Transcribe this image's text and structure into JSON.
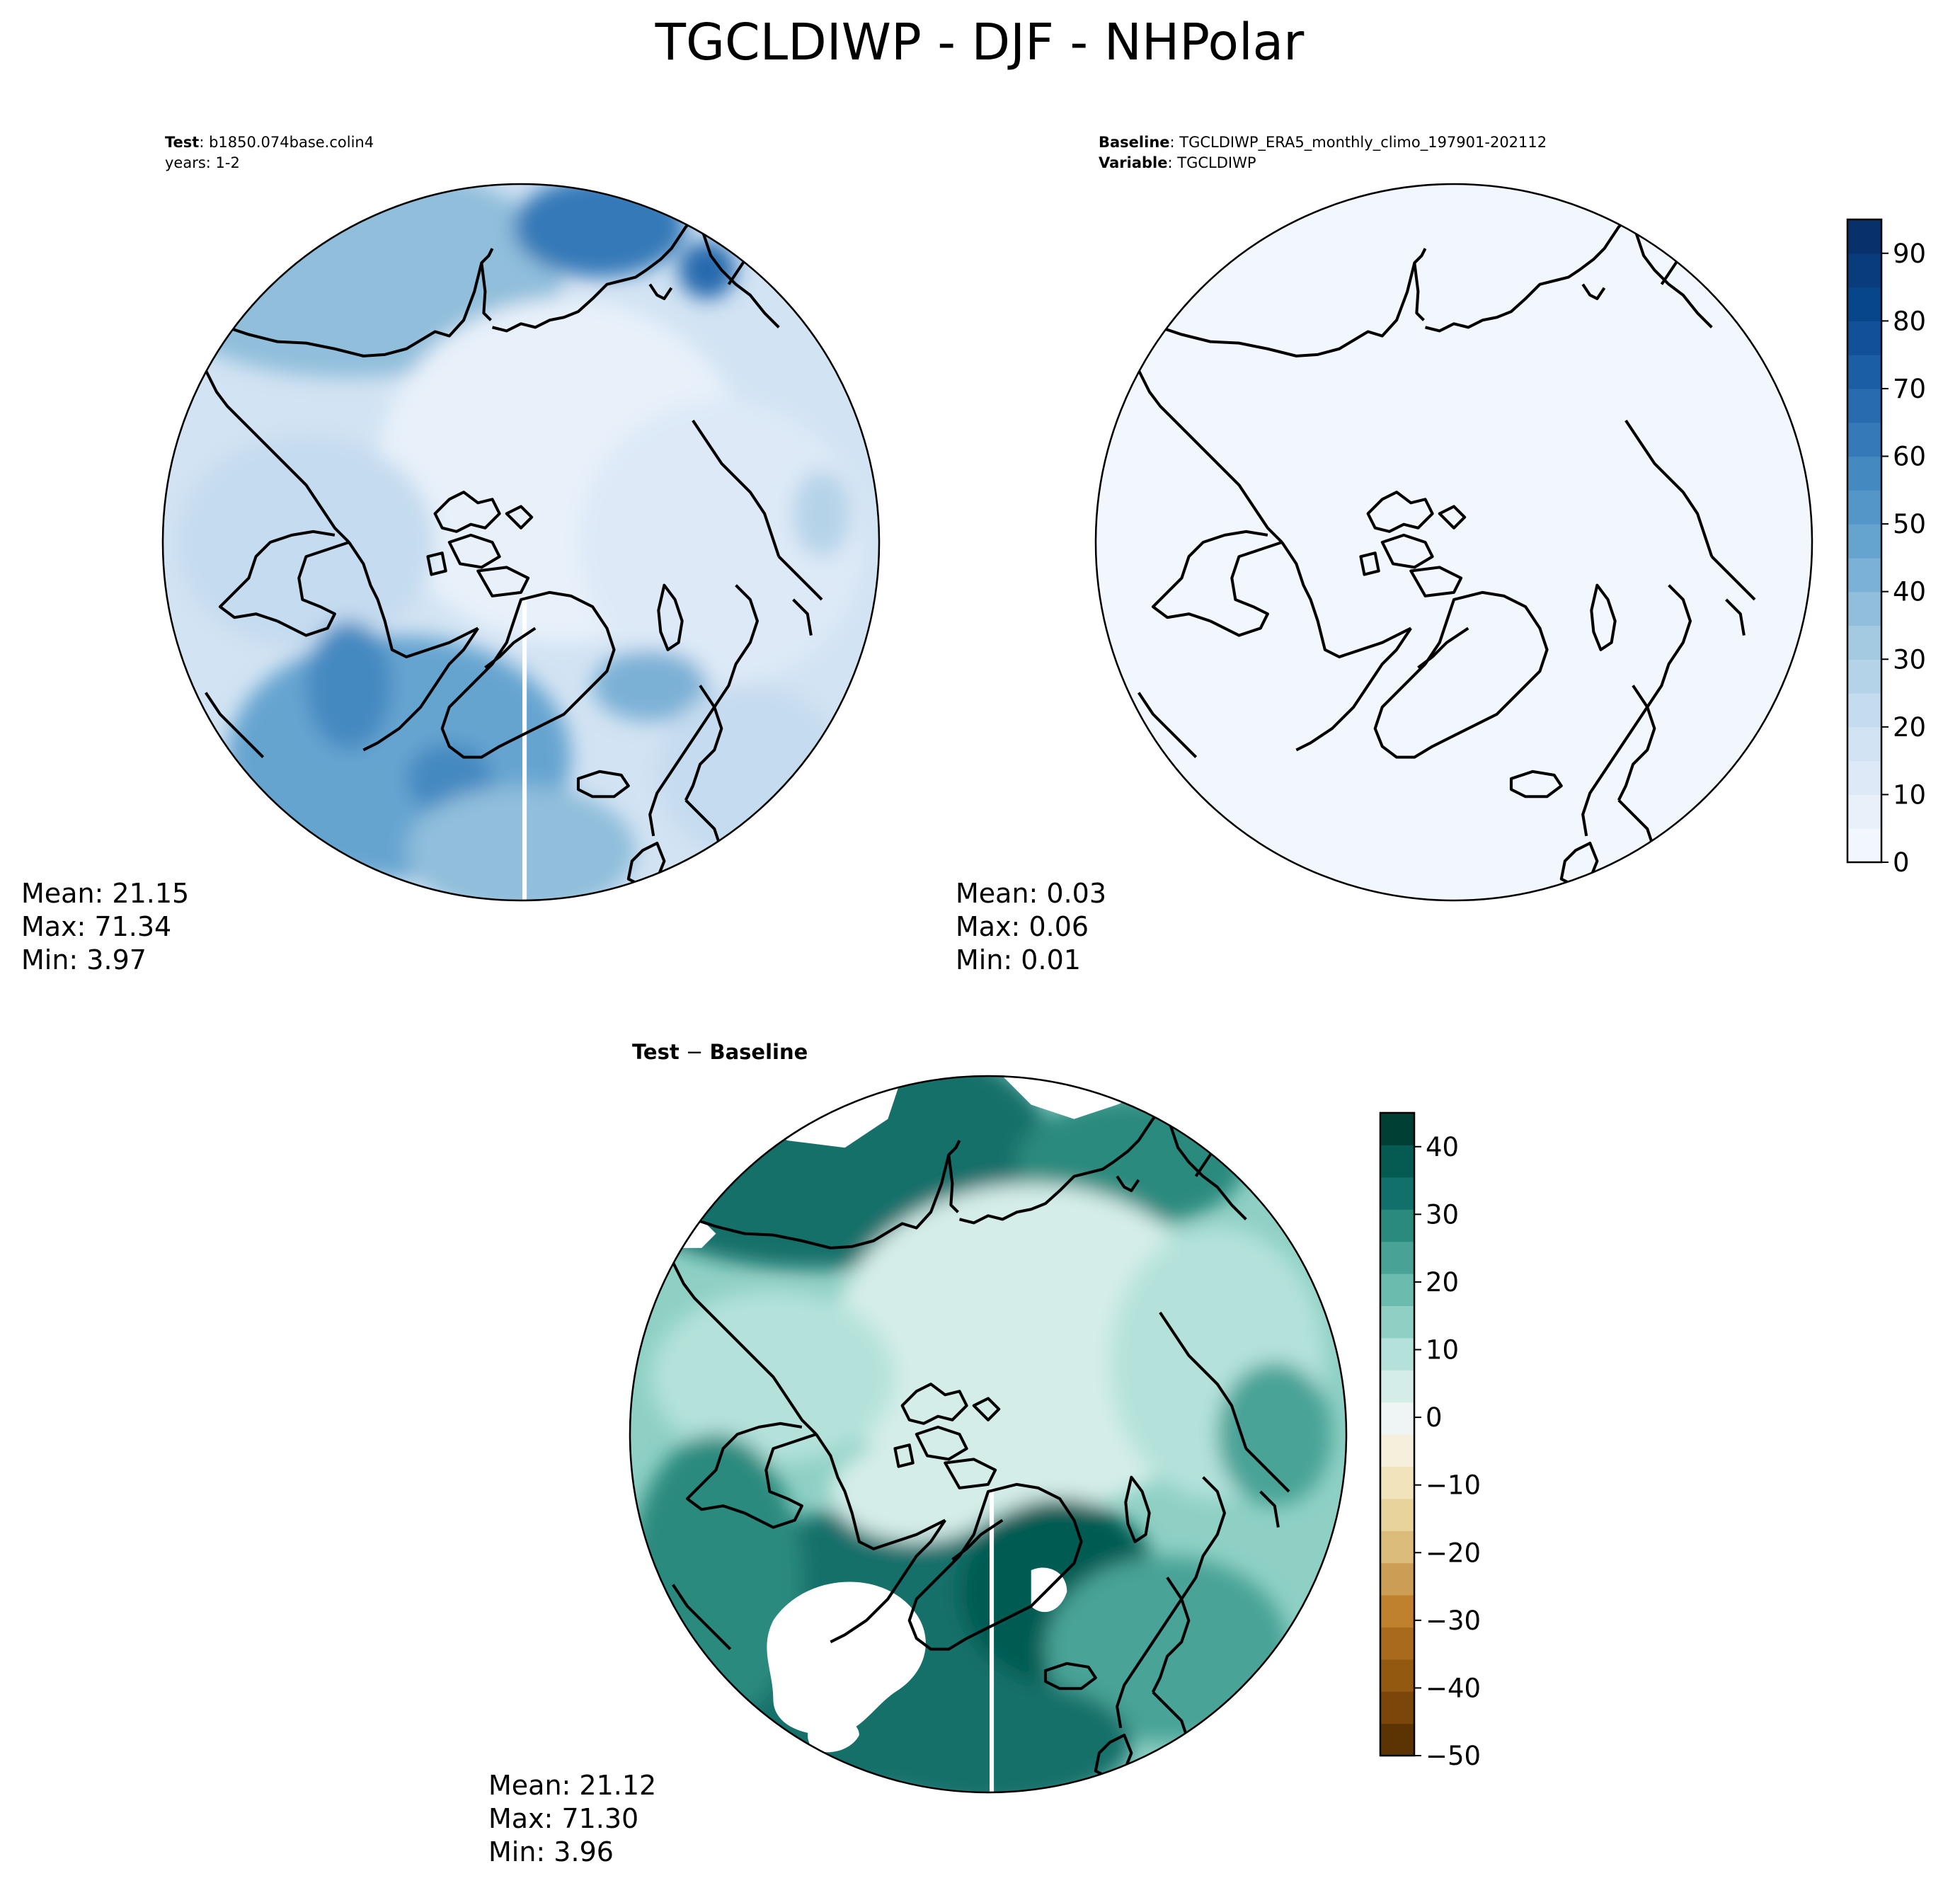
{
  "title": "TGCLDIWP - DJF - NHPolar",
  "panels": {
    "test": {
      "header_label": "Test",
      "header_value": "b1850.074base.colin4",
      "header_line2": "years: 1-2",
      "stats": {
        "mean": "Mean: 21.15",
        "max": "Max: 71.34",
        "min": "Min:  3.97"
      }
    },
    "baseline": {
      "header_label": "Baseline",
      "header_value": "TGCLDIWP_ERA5_monthly_climo_197901-202112",
      "header_label2": "Variable",
      "header_value2": "TGCLDIWP",
      "stats": {
        "mean": "Mean:  0.03",
        "max": "Max:  0.06",
        "min": "Min:  0.01"
      }
    },
    "diff": {
      "title_part1": "Test",
      "title_sep": " − ",
      "title_part2": "Baseline",
      "stats": {
        "mean": "Mean: 21.12",
        "max": "Max: 71.30",
        "min": "Min:  3.96"
      }
    }
  },
  "colorbar_main": {
    "colormap": "Blues",
    "range": [
      0,
      95
    ],
    "ticks": [
      "0",
      "10",
      "20",
      "30",
      "40",
      "50",
      "60",
      "70",
      "80",
      "90"
    ],
    "colors": [
      "#f2f7fd",
      "#e8f1fa",
      "#dde9f7",
      "#d2e3f3",
      "#c5dbef",
      "#b5d3e8",
      "#a4cae2",
      "#90bedb",
      "#7bb1d6",
      "#66a4d0",
      "#5596c8",
      "#4589c1",
      "#3679b8",
      "#286bae",
      "#1c5ea5",
      "#12519a",
      "#08468c",
      "#083c7c",
      "#08306b"
    ]
  },
  "colorbar_diff": {
    "colormap": "BrBG",
    "range": [
      -50,
      45
    ],
    "ticks": [
      "−50",
      "−40",
      "−30",
      "−20",
      "−10",
      "0",
      "10",
      "20",
      "30",
      "40"
    ],
    "colors": [
      "#5c3404",
      "#7a4609",
      "#935910",
      "#a96a1c",
      "#bf812d",
      "#cc9e55",
      "#dbbc7a",
      "#e8d49b",
      "#f1e3bb",
      "#f6efdc",
      "#eef5f4",
      "#d4ede9",
      "#b4e2da",
      "#8fd0c4",
      "#6bbcae",
      "#48a396",
      "#2a8a7e",
      "#12706a",
      "#055b52",
      "#003f33"
    ]
  },
  "coastline_color": "#000000"
}
